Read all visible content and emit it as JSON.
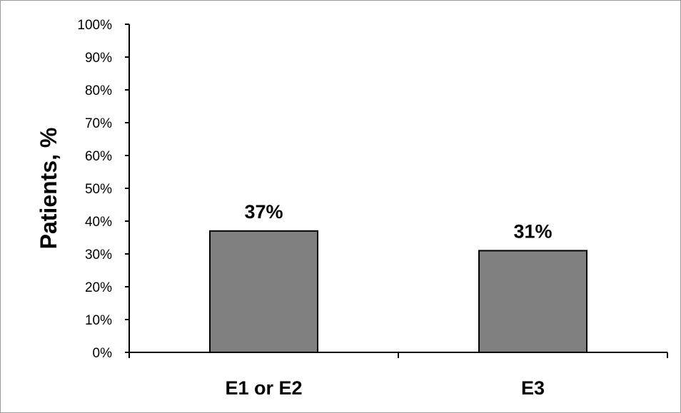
{
  "chart_data": {
    "type": "bar",
    "categories": [
      "E1 or E2",
      "E3"
    ],
    "values": [
      37,
      31
    ],
    "data_labels": [
      "37%",
      "31%"
    ],
    "title": "",
    "xlabel": "",
    "ylabel": "Patients, %",
    "ylim": [
      0,
      100
    ],
    "y_ticks": [
      "0%",
      "10%",
      "20%",
      "30%",
      "40%",
      "50%",
      "60%",
      "70%",
      "80%",
      "90%",
      "100%"
    ],
    "grid": false,
    "legend": "none",
    "colors": {
      "bar_fill": "#808080",
      "bar_stroke": "#000000",
      "axis": "#000000"
    }
  }
}
